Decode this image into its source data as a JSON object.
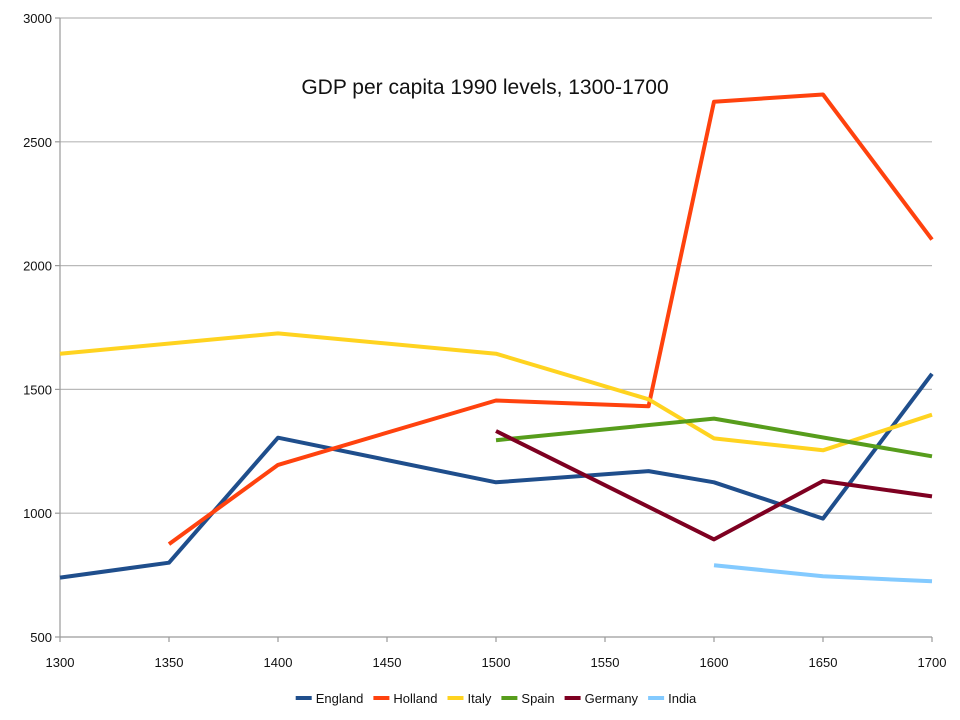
{
  "chart_data": {
    "type": "line",
    "title": "GDP per capita 1990 levels, 1300-1700",
    "xlabel": "",
    "ylabel": "",
    "xlim": [
      1300,
      1700
    ],
    "ylim": [
      500,
      3000
    ],
    "x_ticks": [
      1300,
      1350,
      1400,
      1450,
      1500,
      1550,
      1600,
      1650,
      1700
    ],
    "y_ticks": [
      500,
      1000,
      1500,
      2000,
      2500,
      3000
    ],
    "grid": true,
    "legend_position": "bottom",
    "series": [
      {
        "name": "England",
        "color": "#1f4e8c",
        "points": [
          [
            1300,
            740
          ],
          [
            1350,
            800
          ],
          [
            1400,
            1305
          ],
          [
            1500,
            1125
          ],
          [
            1570,
            1170
          ],
          [
            1600,
            1125
          ],
          [
            1650,
            978
          ],
          [
            1700,
            1563
          ]
        ]
      },
      {
        "name": "Holland",
        "color": "#ff420e",
        "points": [
          [
            1350,
            875
          ],
          [
            1400,
            1195
          ],
          [
            1500,
            1455
          ],
          [
            1570,
            1432
          ],
          [
            1600,
            2662
          ],
          [
            1650,
            2691
          ],
          [
            1700,
            2105
          ]
        ]
      },
      {
        "name": "Italy",
        "color": "#ffd320",
        "points": [
          [
            1300,
            1644
          ],
          [
            1400,
            1726
          ],
          [
            1500,
            1644
          ],
          [
            1570,
            1460
          ],
          [
            1600,
            1302
          ],
          [
            1650,
            1254
          ],
          [
            1700,
            1398
          ]
        ]
      },
      {
        "name": "Spain",
        "color": "#579d1c",
        "points": [
          [
            1500,
            1295
          ],
          [
            1600,
            1382
          ],
          [
            1700,
            1230
          ]
        ]
      },
      {
        "name": "Germany",
        "color": "#7e0021",
        "points": [
          [
            1500,
            1332
          ],
          [
            1600,
            894
          ],
          [
            1650,
            1130
          ],
          [
            1700,
            1068
          ]
        ]
      },
      {
        "name": "India",
        "color": "#83caff",
        "points": [
          [
            1600,
            790
          ],
          [
            1650,
            745
          ],
          [
            1700,
            725
          ]
        ]
      }
    ]
  }
}
